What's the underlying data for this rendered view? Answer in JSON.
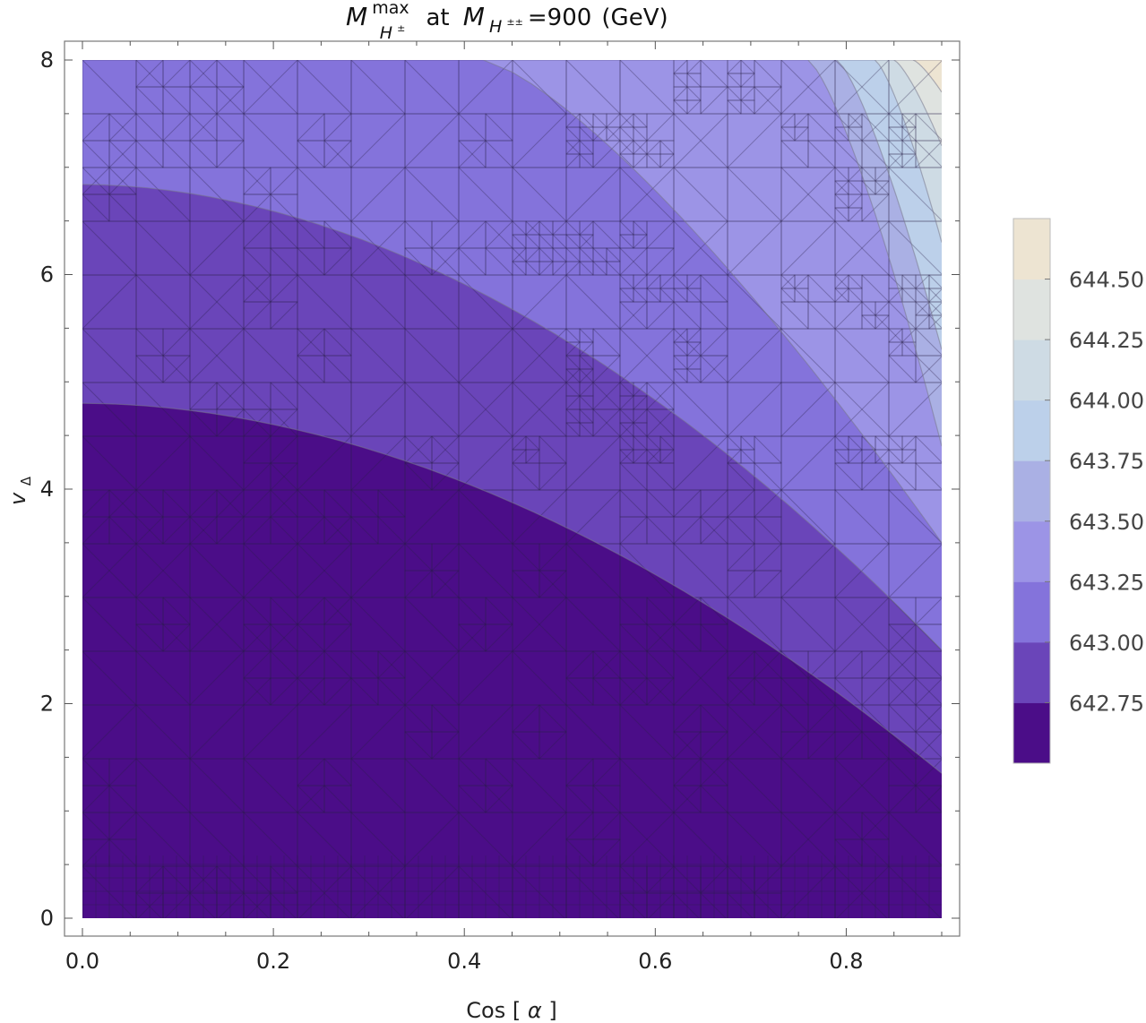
{
  "chart_data": {
    "type": "contour",
    "title": {
      "symbol": "M",
      "superscript": "max",
      "subscript": "H",
      "subscript_sup": "±",
      "middle": "at",
      "symbol2": "M",
      "subscript2": "H",
      "subscript2_sup": "±±",
      "value": "=900",
      "unit": "(GeV)"
    },
    "xlabel": {
      "name": "Cos",
      "arg": "α"
    },
    "ylabel": {
      "name": "v",
      "sub": "Δ"
    },
    "xlim": [
      0.0,
      0.9
    ],
    "ylim": [
      0,
      8
    ],
    "x_ticks": [
      0.0,
      0.2,
      0.4,
      0.6,
      0.8
    ],
    "x_tick_labels": [
      "0.0",
      "0.2",
      "0.4",
      "0.6",
      "0.8"
    ],
    "y_ticks": [
      0,
      2,
      4,
      6,
      8
    ],
    "y_tick_labels": [
      "0",
      "2",
      "4",
      "6",
      "8"
    ],
    "colorbar_ticks": [
      "642.75",
      "643.00",
      "643.25",
      "643.50",
      "643.75",
      "644.00",
      "644.25",
      "644.50"
    ],
    "level_colors": [
      "#4b0d88",
      "#6a45b9",
      "#8473db",
      "#9c94e6",
      "#aab0e4",
      "#bcd0ea",
      "#cedbe4",
      "#dfe3e0",
      "#ede4d2"
    ],
    "boundaries": [
      {
        "level": "642.75",
        "y_intercept": 4.8,
        "x_end": 0.9,
        "y_end": 1.35
      },
      {
        "level": "643.00",
        "y_intercept": 6.84,
        "x_end": 0.9,
        "y_end": 2.5
      },
      {
        "level": "643.25",
        "x_top": 0.42,
        "x_end": 0.9,
        "y_end": 3.5
      },
      {
        "level": "643.50",
        "x_top": 0.76,
        "x_end": 0.9,
        "y_end": 4.4
      },
      {
        "level": "643.75",
        "x_top": 0.79,
        "x_end": 0.9,
        "y_end": 5.3
      },
      {
        "level": "644.00",
        "x_top": 0.83,
        "x_end": 0.9,
        "y_end": 6.3
      },
      {
        "level": "644.25",
        "x_top": 0.85,
        "x_end": 0.9,
        "y_end": 7.2
      },
      {
        "level": "644.50",
        "x_top": 0.87,
        "x_end": 0.9,
        "y_end": 7.7
      }
    ],
    "mesh": true
  }
}
